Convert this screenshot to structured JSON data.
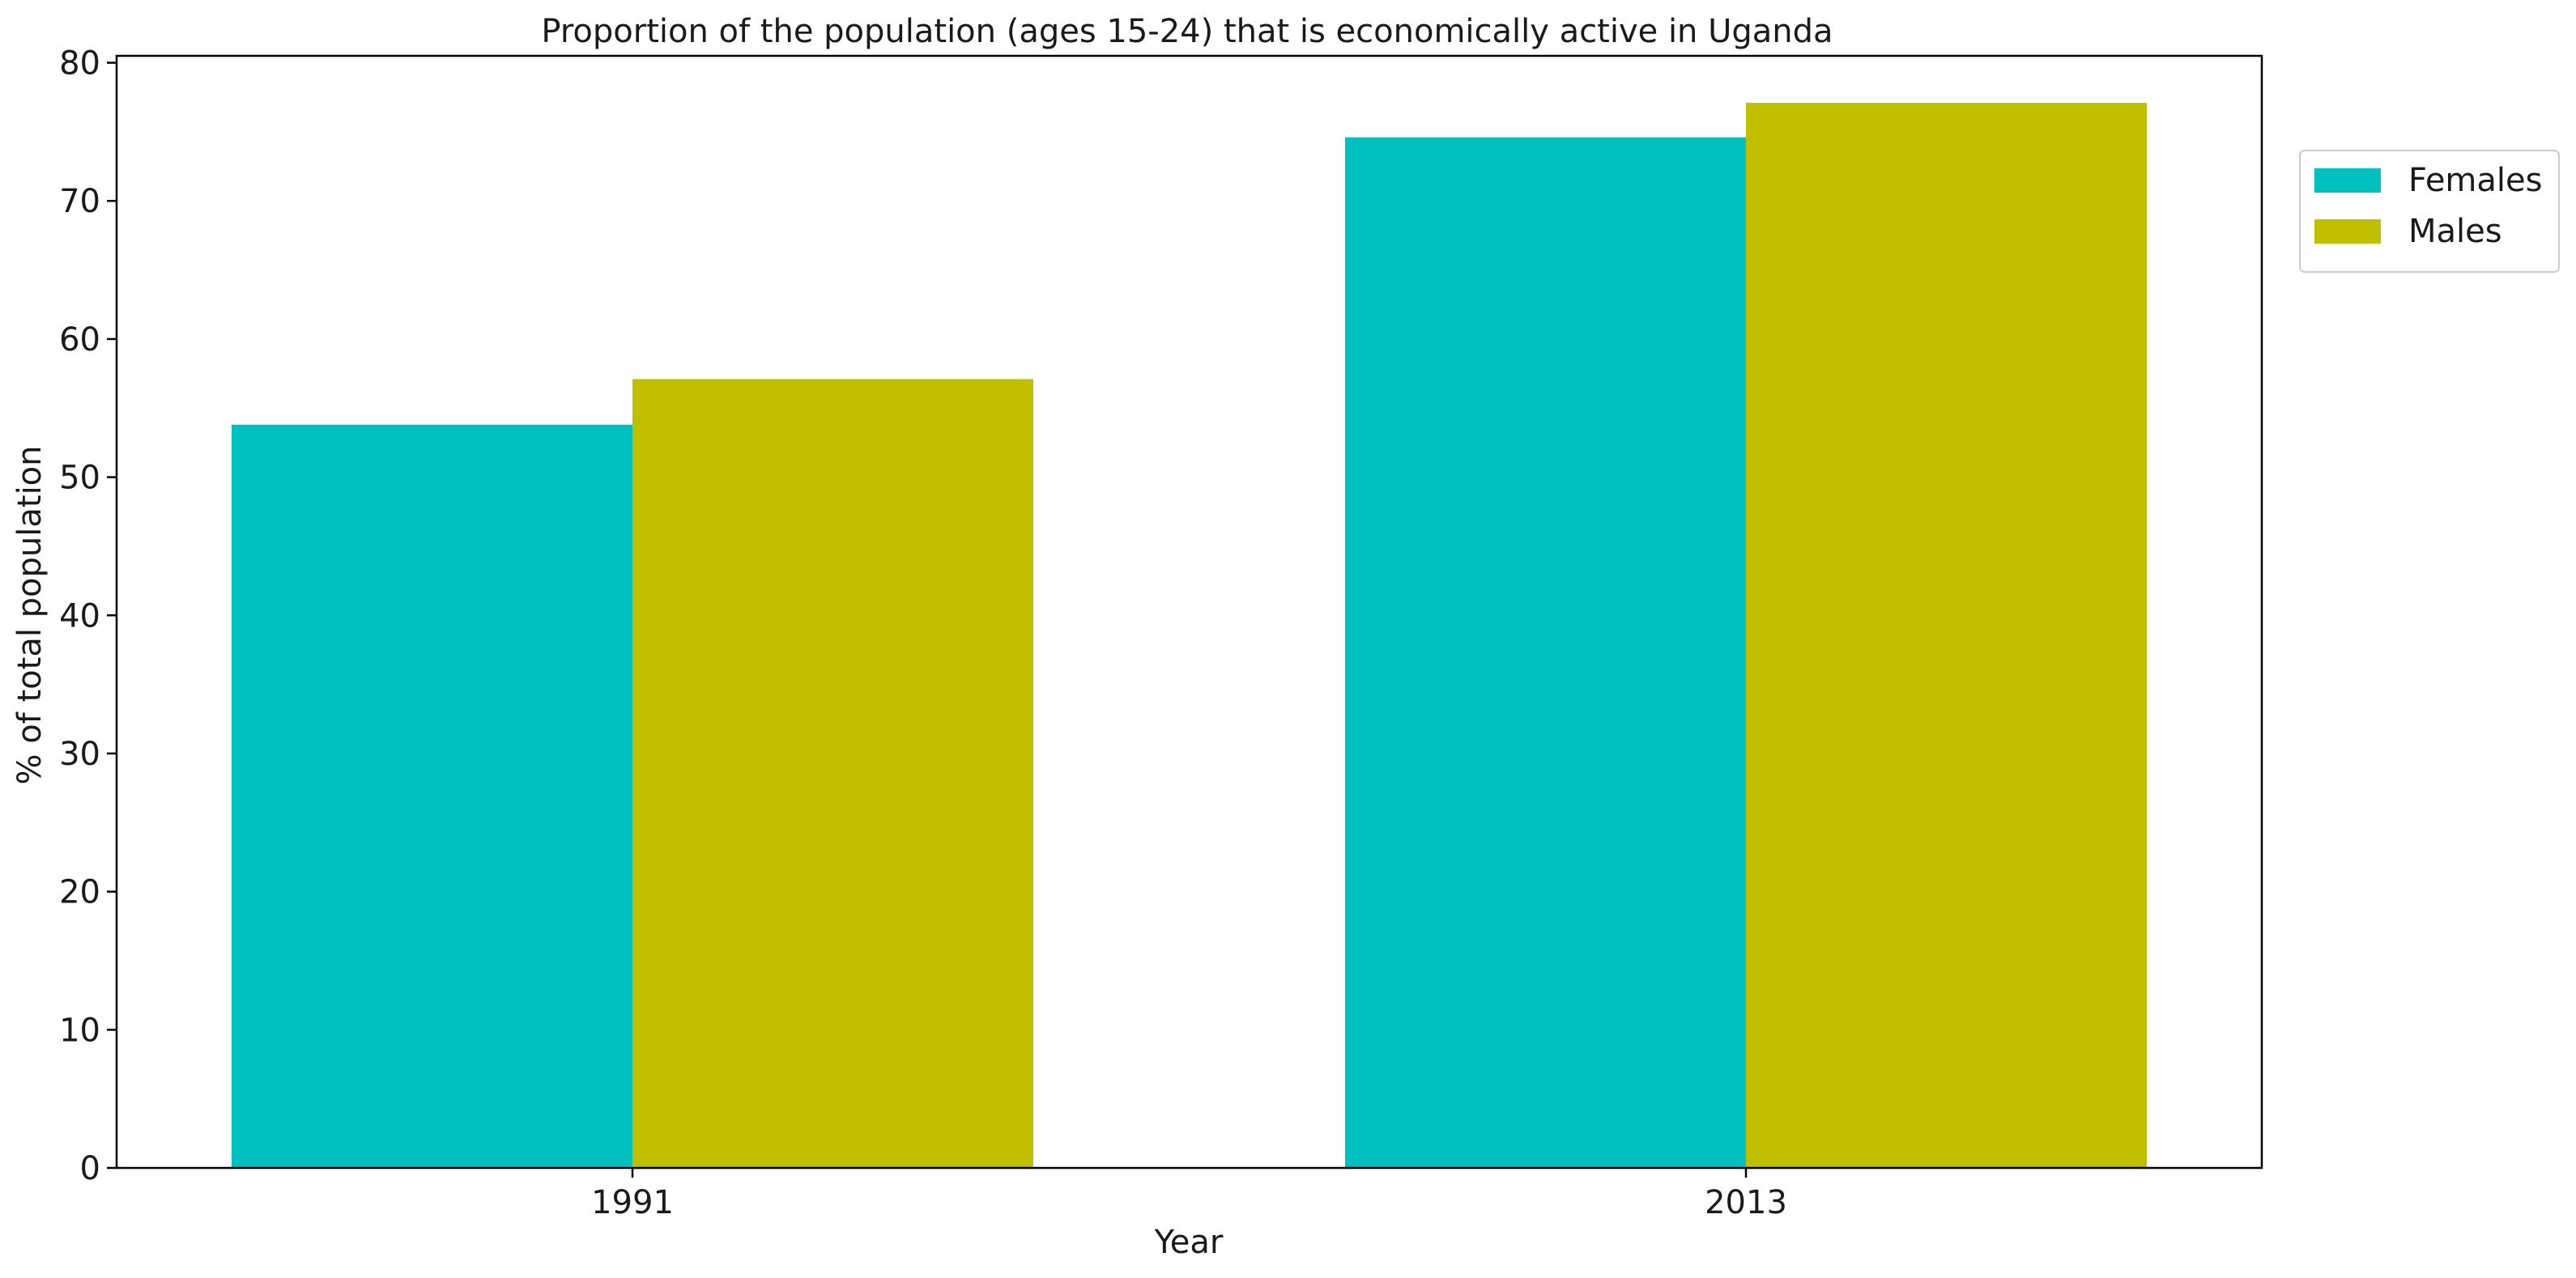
{
  "chart_data": {
    "type": "bar",
    "title": "Proportion of the population (ages 15-24) that is economically active in Uganda",
    "xlabel": "Year",
    "ylabel": "% of total population",
    "categories": [
      "1991",
      "2013"
    ],
    "series": [
      {
        "name": "Females",
        "color": "#00bfbf",
        "values": [
          53.8,
          74.6
        ]
      },
      {
        "name": "Males",
        "color": "#bfbf00",
        "values": [
          57.1,
          77.1
        ]
      }
    ],
    "ylim": [
      0,
      80.5
    ],
    "yticks": [
      0,
      10,
      20,
      30,
      40,
      50,
      60,
      70,
      80
    ],
    "grid": false,
    "legend": "outside-top-right"
  }
}
